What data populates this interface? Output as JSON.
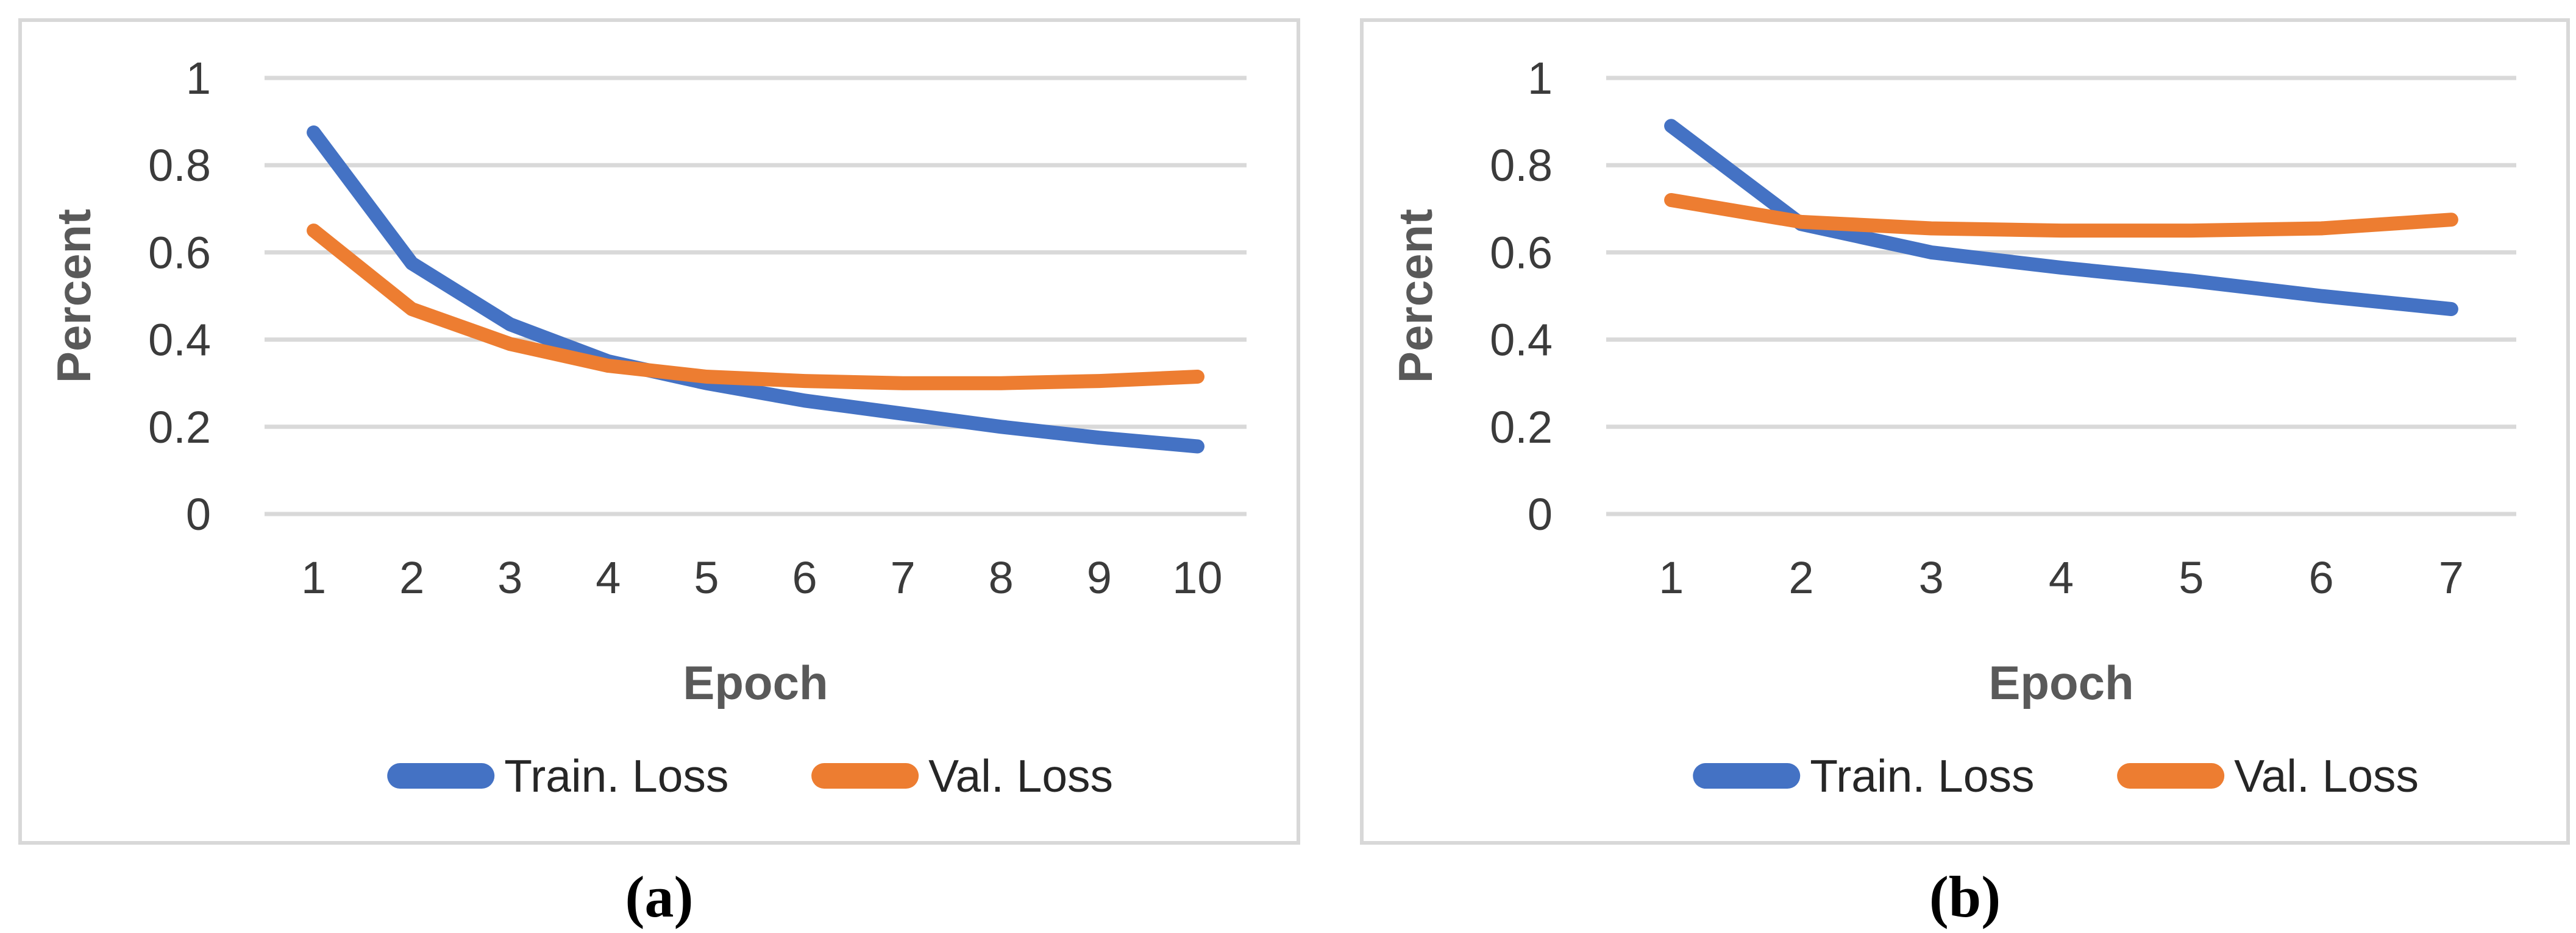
{
  "figure": {
    "captions": {
      "a": "(a)",
      "b": "(b)"
    }
  },
  "colors": {
    "train_line": "#4472C4",
    "val_line": "#ED7D31",
    "gridline": "#D9D9D9",
    "panel_border": "#D8D8D8",
    "tick_label": "#3B3B3B",
    "axis_title": "#595959",
    "legend_text": "#262626",
    "caption_text": "#000000",
    "background": "#FFFFFF"
  },
  "chart_data": [
    {
      "id": "a",
      "type": "line",
      "title": "",
      "xlabel": "Epoch",
      "ylabel": "Percent",
      "categories": [
        1,
        2,
        3,
        4,
        5,
        6,
        7,
        8,
        9,
        10
      ],
      "ylim": [
        0,
        1
      ],
      "ytick_values": [
        1,
        0.8,
        0.6,
        0.4,
        0.2,
        0
      ],
      "ytick_labels": [
        "1",
        "0.8",
        "0.6",
        "0.4",
        "0.2",
        "0"
      ],
      "grid": true,
      "legend_position": "bottom",
      "series": [
        {
          "name": "Train. Loss",
          "color_key": "train_line",
          "values": [
            0.875,
            0.575,
            0.435,
            0.35,
            0.3,
            0.26,
            0.23,
            0.2,
            0.175,
            0.155
          ]
        },
        {
          "name": "Val. Loss",
          "color_key": "val_line",
          "values": [
            0.65,
            0.47,
            0.39,
            0.34,
            0.315,
            0.305,
            0.3,
            0.3,
            0.305,
            0.315
          ]
        }
      ]
    },
    {
      "id": "b",
      "type": "line",
      "title": "",
      "xlabel": "Epoch",
      "ylabel": "Percent",
      "categories": [
        1,
        2,
        3,
        4,
        5,
        6,
        7
      ],
      "ylim": [
        0,
        1
      ],
      "ytick_values": [
        1,
        0.8,
        0.6,
        0.4,
        0.2,
        0
      ],
      "ytick_labels": [
        "1",
        "0.8",
        "0.6",
        "0.4",
        "0.2",
        "0"
      ],
      "grid": true,
      "legend_position": "bottom",
      "series": [
        {
          "name": "Train. Loss",
          "color_key": "train_line",
          "values": [
            0.89,
            0.665,
            0.6,
            0.565,
            0.535,
            0.5,
            0.47
          ]
        },
        {
          "name": "Val. Loss",
          "color_key": "val_line",
          "values": [
            0.72,
            0.67,
            0.655,
            0.65,
            0.65,
            0.655,
            0.675
          ]
        }
      ]
    }
  ]
}
